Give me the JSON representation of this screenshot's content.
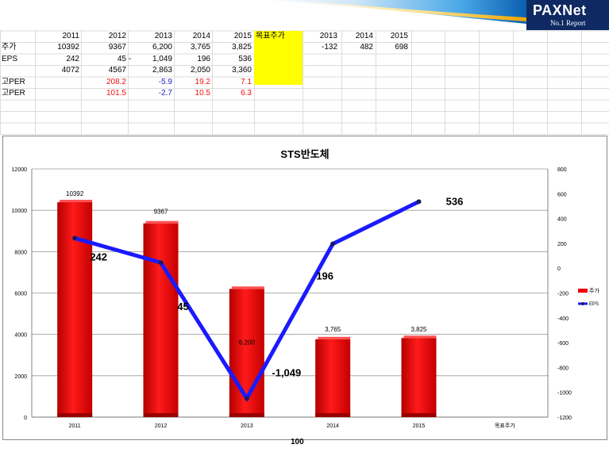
{
  "header": {
    "logo_main": "PAXNet",
    "logo_sub": "No.1 Report"
  },
  "sheet": {
    "header_row": [
      "2011",
      "2012",
      "2013",
      "2014",
      "2015"
    ],
    "target_label": "목표주가",
    "side_header": [
      "2013",
      "2014",
      "2015"
    ],
    "side_values": [
      "-132",
      "482",
      "698"
    ],
    "rows": [
      {
        "label": "주가",
        "values": [
          "10392",
          "9367",
          "6,200",
          "3,765",
          "3,825"
        ]
      },
      {
        "label": "EPS",
        "values": [
          "242",
          "45",
          "1,049",
          "196",
          "536"
        ],
        "dash": "-"
      },
      {
        "label": "",
        "values": [
          "4072",
          "4567",
          "2,863",
          "2,050",
          "3,360"
        ]
      },
      {
        "label": "고PER",
        "values": [
          "",
          "208.2",
          "-5.9",
          "19.2",
          "7.1"
        ]
      },
      {
        "label": "고PER",
        "values": [
          "",
          "101.5",
          "-2.7",
          "10.5",
          "6.3"
        ]
      }
    ]
  },
  "chart_data": {
    "type": "bar",
    "title": "STS반도체",
    "categories": [
      "2011",
      "2012",
      "2013",
      "2014",
      "2015",
      "목표주가"
    ],
    "series": [
      {
        "name": "주가",
        "type": "bar",
        "axis": "left",
        "values": [
          10392,
          9367,
          6200,
          3765,
          3825,
          null
        ],
        "labels": [
          "10392",
          "9367",
          "6,200",
          "3,765",
          "3,825",
          ""
        ],
        "color": "#ee0000"
      },
      {
        "name": "EPS",
        "type": "line",
        "axis": "right",
        "values": [
          242,
          45,
          -1049,
          196,
          536,
          null
        ],
        "labels": [
          "242",
          "45",
          "-1,049",
          "196",
          "536",
          ""
        ],
        "color": "#1a1aff"
      }
    ],
    "y_left": {
      "min": 0,
      "max": 12000,
      "ticks": [
        0,
        2000,
        4000,
        6000,
        8000,
        10000,
        12000
      ]
    },
    "y_right": {
      "min": -1200,
      "max": 800,
      "ticks": [
        -1200,
        -1000,
        -800,
        -600,
        -400,
        -200,
        0,
        200,
        400,
        600,
        800
      ]
    },
    "legend_position": "right",
    "grid": true
  },
  "footer": {
    "number": "100"
  }
}
